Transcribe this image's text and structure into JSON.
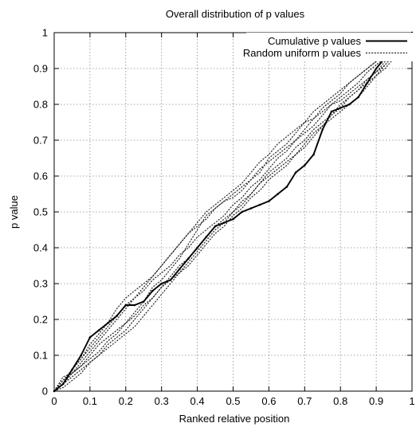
{
  "chart_data": {
    "type": "line",
    "title": "Overall distribution of p values",
    "xlabel": "Ranked relative position",
    "ylabel": "p value",
    "xlim": [
      0,
      1
    ],
    "ylim": [
      0,
      1
    ],
    "x_ticks": [
      "0",
      "0.1",
      "0.2",
      "0.3",
      "0.4",
      "0.5",
      "0.6",
      "0.7",
      "0.8",
      "0.9",
      "1"
    ],
    "y_ticks": [
      "0",
      "0.1",
      "0.2",
      "0.3",
      "0.4",
      "0.5",
      "0.6",
      "0.7",
      "0.8",
      "0.9",
      "1"
    ],
    "grid": true,
    "legend": "top-right",
    "x": [
      0,
      0.025,
      0.05,
      0.075,
      0.1,
      0.125,
      0.15,
      0.175,
      0.2,
      0.225,
      0.25,
      0.275,
      0.3,
      0.325,
      0.35,
      0.375,
      0.4,
      0.425,
      0.45,
      0.475,
      0.5,
      0.525,
      0.55,
      0.575,
      0.6,
      0.625,
      0.65,
      0.675,
      0.7,
      0.725,
      0.75,
      0.775,
      0.8,
      0.825,
      0.85,
      0.875,
      0.9,
      0.925,
      0.95,
      0.975,
      1
    ],
    "series": [
      {
        "name": "Cumulative p values",
        "style": "solid",
        "values": [
          0,
          0.02,
          0.06,
          0.1,
          0.15,
          0.17,
          0.19,
          0.21,
          0.24,
          0.24,
          0.25,
          0.28,
          0.3,
          0.31,
          0.34,
          0.37,
          0.4,
          0.43,
          0.46,
          0.47,
          0.48,
          0.5,
          0.51,
          0.52,
          0.53,
          0.55,
          0.57,
          0.61,
          0.63,
          0.66,
          0.73,
          0.78,
          0.79,
          0.8,
          0.82,
          0.86,
          0.9,
          0.93,
          0.96,
          0.98,
          1
        ]
      },
      {
        "name": "Random uniform p values",
        "style": "dotted",
        "values": [
          0,
          0.04,
          0.05,
          0.07,
          0.1,
          0.13,
          0.15,
          0.17,
          0.19,
          0.22,
          0.25,
          0.29,
          0.31,
          0.34,
          0.37,
          0.41,
          0.45,
          0.49,
          0.51,
          0.53,
          0.54,
          0.56,
          0.59,
          0.61,
          0.65,
          0.67,
          0.69,
          0.72,
          0.75,
          0.76,
          0.78,
          0.8,
          0.81,
          0.83,
          0.85,
          0.87,
          0.89,
          0.92,
          0.94,
          0.97,
          1
        ]
      },
      {
        "name": "",
        "style": "dotted",
        "values": [
          0,
          0.03,
          0.06,
          0.09,
          0.13,
          0.16,
          0.19,
          0.23,
          0.26,
          0.28,
          0.3,
          0.32,
          0.35,
          0.38,
          0.41,
          0.44,
          0.46,
          0.48,
          0.51,
          0.53,
          0.55,
          0.57,
          0.59,
          0.62,
          0.64,
          0.66,
          0.68,
          0.7,
          0.73,
          0.76,
          0.79,
          0.81,
          0.83,
          0.86,
          0.88,
          0.9,
          0.92,
          0.94,
          0.96,
          0.98,
          1
        ]
      },
      {
        "name": "",
        "style": "dotted",
        "values": [
          0,
          0.02,
          0.04,
          0.06,
          0.08,
          0.1,
          0.12,
          0.14,
          0.16,
          0.18,
          0.21,
          0.24,
          0.27,
          0.3,
          0.33,
          0.35,
          0.38,
          0.41,
          0.44,
          0.46,
          0.49,
          0.51,
          0.54,
          0.56,
          0.59,
          0.61,
          0.63,
          0.66,
          0.69,
          0.72,
          0.74,
          0.77,
          0.79,
          0.82,
          0.84,
          0.86,
          0.88,
          0.91,
          0.94,
          0.97,
          1
        ]
      },
      {
        "name": "",
        "style": "dotted",
        "values": [
          0,
          0.01,
          0.03,
          0.05,
          0.08,
          0.1,
          0.13,
          0.15,
          0.17,
          0.2,
          0.23,
          0.26,
          0.29,
          0.31,
          0.33,
          0.36,
          0.39,
          0.42,
          0.45,
          0.47,
          0.5,
          0.53,
          0.55,
          0.58,
          0.6,
          0.62,
          0.64,
          0.66,
          0.68,
          0.71,
          0.74,
          0.76,
          0.78,
          0.8,
          0.82,
          0.85,
          0.88,
          0.9,
          0.93,
          0.96,
          1
        ]
      },
      {
        "name": "",
        "style": "dotted",
        "values": [
          0,
          0.03,
          0.05,
          0.08,
          0.11,
          0.14,
          0.17,
          0.2,
          0.23,
          0.26,
          0.28,
          0.31,
          0.33,
          0.35,
          0.38,
          0.4,
          0.43,
          0.45,
          0.47,
          0.49,
          0.52,
          0.54,
          0.57,
          0.59,
          0.62,
          0.65,
          0.67,
          0.7,
          0.72,
          0.74,
          0.77,
          0.8,
          0.82,
          0.84,
          0.86,
          0.89,
          0.91,
          0.93,
          0.95,
          0.98,
          1
        ]
      },
      {
        "name": "",
        "style": "dotted",
        "values": [
          0,
          0.02,
          0.05,
          0.07,
          0.09,
          0.11,
          0.14,
          0.16,
          0.19,
          0.21,
          0.24,
          0.26,
          0.29,
          0.32,
          0.35,
          0.37,
          0.4,
          0.43,
          0.46,
          0.48,
          0.5,
          0.52,
          0.55,
          0.58,
          0.61,
          0.63,
          0.65,
          0.68,
          0.7,
          0.73,
          0.75,
          0.77,
          0.8,
          0.82,
          0.84,
          0.87,
          0.89,
          0.91,
          0.94,
          0.97,
          1
        ]
      },
      {
        "name": "",
        "style": "dotted",
        "values": [
          0,
          0.03,
          0.06,
          0.09,
          0.12,
          0.15,
          0.18,
          0.21,
          0.24,
          0.26,
          0.29,
          0.32,
          0.35,
          0.38,
          0.41,
          0.44,
          0.47,
          0.5,
          0.52,
          0.54,
          0.56,
          0.58,
          0.61,
          0.64,
          0.66,
          0.69,
          0.71,
          0.73,
          0.75,
          0.78,
          0.8,
          0.82,
          0.84,
          0.86,
          0.88,
          0.9,
          0.92,
          0.94,
          0.96,
          0.98,
          1
        ]
      }
    ]
  },
  "colors": {
    "solid_line": "#000000",
    "dotted_line": "#222222",
    "grid": "#8a8a8a",
    "frame": "#000000"
  }
}
